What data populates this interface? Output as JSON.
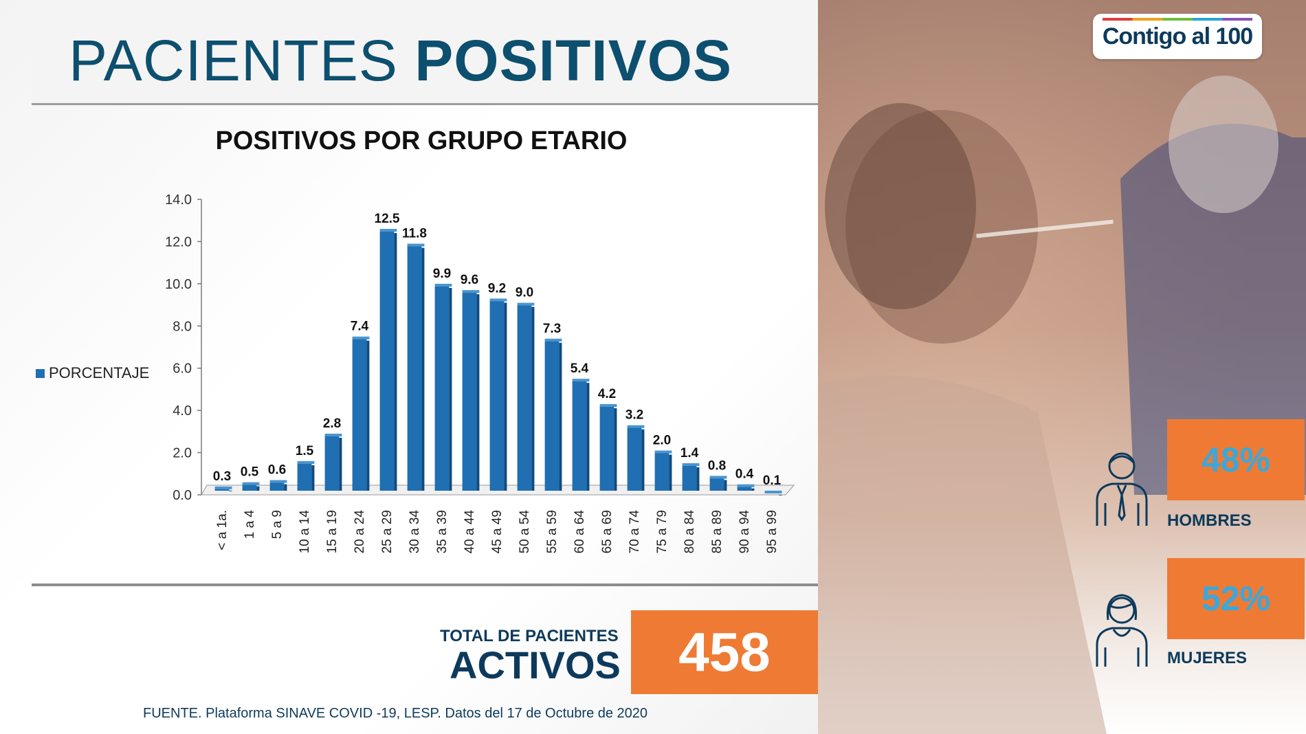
{
  "header": {
    "title_light": "PACIENTES",
    "title_bold": "POSITIVOS"
  },
  "chart_data": {
    "type": "bar",
    "title": "POSITIVOS POR GRUPO ETARIO",
    "xlabel": "",
    "ylabel": "",
    "ylim": [
      0,
      14
    ],
    "yticks": [
      "0.0",
      "2.0",
      "4.0",
      "6.0",
      "8.0",
      "10.0",
      "12.0",
      "14.0"
    ],
    "legend": {
      "position": "left",
      "entries": [
        "PORCENTAJE"
      ]
    },
    "categories": [
      "< a 1a.",
      "1 a 4",
      "5 a 9",
      "10 a 14",
      "15 a 19",
      "20 a 24",
      "25 a 29",
      "30 a 34",
      "35 a 39",
      "40 a 44",
      "45 a 49",
      "50 a 54",
      "55 a 59",
      "60 a 64",
      "65 a 69",
      "70 a 74",
      "75 a 79",
      "80 a 84",
      "85 a 89",
      "90 a 94",
      "95 a 99"
    ],
    "series": [
      {
        "name": "PORCENTAJE",
        "color": "#1f6fb2",
        "values": [
          0.3,
          0.5,
          0.6,
          1.5,
          2.8,
          7.4,
          12.5,
          11.8,
          9.9,
          9.6,
          9.2,
          9.0,
          7.3,
          5.4,
          4.2,
          3.2,
          2.0,
          1.4,
          0.8,
          0.4,
          0.1
        ]
      }
    ],
    "data_labels": [
      "0.3",
      "0.5",
      "0.6",
      "1.5",
      "2.8",
      "7.4",
      "12.5",
      "11.8",
      "9.9",
      "9.6",
      "9.2",
      "9.0",
      "7.3",
      "5.4",
      "4.2",
      "3.2",
      "2.0",
      "1.4",
      "0.8",
      "0.4",
      "0.1"
    ],
    "grid": false
  },
  "total": {
    "label": "TOTAL DE PACIENTES",
    "sub": "ACTIVOS",
    "value": "458"
  },
  "source": "FUENTE. Plataforma SINAVE COVID -19, LESP. Datos del 17 de Octubre de 2020",
  "logo": {
    "text": "Contigo al 100"
  },
  "gender": {
    "men": {
      "pct": "48%",
      "label": "HOMBRES",
      "icon": "man-icon"
    },
    "women": {
      "pct": "52%",
      "label": "MUJERES",
      "icon": "woman-icon"
    }
  },
  "colors": {
    "brand": "#0d4f6e",
    "accent": "#ef7a34",
    "bar": "#1f6fb2",
    "pct_text": "#3aa8dc"
  }
}
